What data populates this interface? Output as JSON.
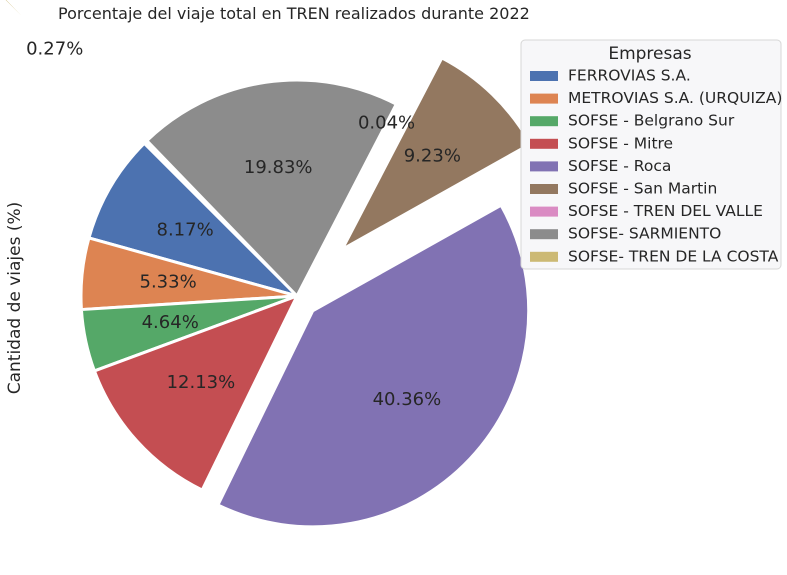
{
  "chart_data": {
    "type": "pie",
    "title": "Porcentaje del viaje total en TREN realizados durante 2022",
    "ylabel": "Cantidad de viajes (%)",
    "legend_title": "Empresas",
    "legend_position": "upper-right",
    "slices": [
      {
        "name": "FERROVIAS S.A.",
        "value": 8.17,
        "label": "8.17%",
        "color": "#4c72b0",
        "explode": 0
      },
      {
        "name": "METROVIAS S.A. (URQUIZA)",
        "value": 5.33,
        "label": "5.33%",
        "color": "#dd8452",
        "explode": 0
      },
      {
        "name": "SOFSE - Belgrano Sur",
        "value": 4.64,
        "label": "4.64%",
        "color": "#55a868",
        "explode": 0
      },
      {
        "name": "SOFSE - Mitre",
        "value": 12.13,
        "label": "12.13%",
        "color": "#c44e52",
        "explode": 0
      },
      {
        "name": "SOFSE - Roca",
        "value": 40.36,
        "label": "40.36%",
        "color": "#8172b3",
        "explode": 0.1
      },
      {
        "name": "SOFSE - San Martin",
        "value": 9.23,
        "label": "9.23%",
        "color": "#937860",
        "explode": 0.3
      },
      {
        "name": "SOFSE - TREN DEL VALLE",
        "value": 0.04,
        "label": "0.04%",
        "color": "#da8bc3",
        "explode": 0.3
      },
      {
        "name": "SOFSE- SARMIENTO",
        "value": 19.83,
        "label": "19.83%",
        "color": "#8c8c8c",
        "explode": 0
      },
      {
        "name": "SOFSE- TREN DE LA COSTA",
        "value": 0.27,
        "label": "0.27%",
        "color": "#ccb974",
        "explode": 1.0
      }
    ]
  }
}
